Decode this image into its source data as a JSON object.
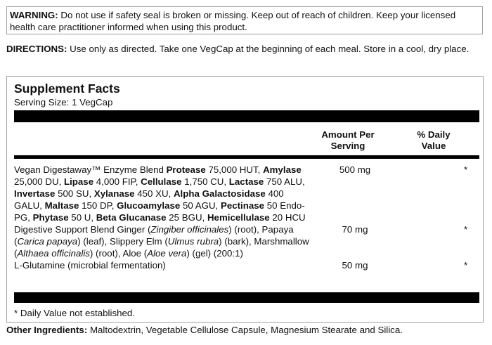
{
  "warning": {
    "label": "WARNING:",
    "text": " Do not use if safety seal is broken or missing. Keep out of reach of children. Keep your licensed health care practitioner informed when using this product."
  },
  "directions": {
    "label": "DIRECTIONS:",
    "text": " Use only as directed. Take one VegCap at the beginning of each meal.  Store in a cool, dry place."
  },
  "facts": {
    "title": "Supplement Facts",
    "serving_size": "Serving Size: 1 VegCap",
    "header_amount": "Amount Per Serving",
    "header_dv": "% Daily Value",
    "rows": [
      {
        "segments": [
          [
            "",
            "Vegan Digestaway™ Enzyme Blend "
          ],
          [
            "b",
            "Protease"
          ],
          [
            "",
            " 75,000 HUT, "
          ],
          [
            "b",
            "Amylase"
          ],
          [
            "",
            " 25,000 DU, "
          ],
          [
            "b",
            "Lipase"
          ],
          [
            "",
            " 4,000 FIP, "
          ],
          [
            "b",
            "Cellulase"
          ],
          [
            "",
            " 1,750 CU, "
          ],
          [
            "b",
            "Lactase"
          ],
          [
            "",
            " 750 ALU, "
          ],
          [
            "b",
            "Invertase"
          ],
          [
            "",
            " 500 SU, "
          ],
          [
            "b",
            "Xylanase"
          ],
          [
            "",
            " 450 XU, "
          ],
          [
            "b",
            "Alpha Galactosidase"
          ],
          [
            "",
            " 400 GALU, "
          ],
          [
            "b",
            "Maltase"
          ],
          [
            "",
            " 150 DP, "
          ],
          [
            "b",
            "Glucoamylase"
          ],
          [
            "",
            " 50 AGU, "
          ],
          [
            "b",
            "Pectinase"
          ],
          [
            "",
            " 50 Endo-PG, "
          ],
          [
            "b",
            "Phytase"
          ],
          [
            "",
            " 50 U, "
          ],
          [
            "b",
            "Beta Glucanase"
          ],
          [
            "",
            " 25 BGU, "
          ],
          [
            "b",
            "Hemicellulase"
          ],
          [
            "",
            " 20 HCU"
          ]
        ],
        "amount": "500 mg",
        "dv": "*"
      },
      {
        "segments": [
          [
            "",
            "Digestive Support Blend Ginger ("
          ],
          [
            "i",
            "Zingiber officinales"
          ],
          [
            "",
            ") (root), Papaya ("
          ],
          [
            "i",
            "Carica papaya"
          ],
          [
            "",
            ") (leaf), Slippery Elm ("
          ],
          [
            "i",
            "Ulmus rubra"
          ],
          [
            "",
            ") (bark), Marshmallow ("
          ],
          [
            "i",
            "Althaea officinalis"
          ],
          [
            "",
            ") (root), Aloe ("
          ],
          [
            "i",
            "Aloe vera"
          ],
          [
            "",
            ") (gel) (200:1)"
          ]
        ],
        "amount": "70 mg",
        "dv": "*"
      },
      {
        "segments": [
          [
            "",
            "L-Glutamine (microbial fermentation)"
          ]
        ],
        "amount": "50 mg",
        "dv": "*"
      }
    ],
    "footnote": "* Daily Value not established."
  },
  "other": {
    "label": "Other Ingredients:",
    "text": " Maltodextrin, Vegetable Cellulose Capsule, Magnesium Stearate and Silica."
  }
}
